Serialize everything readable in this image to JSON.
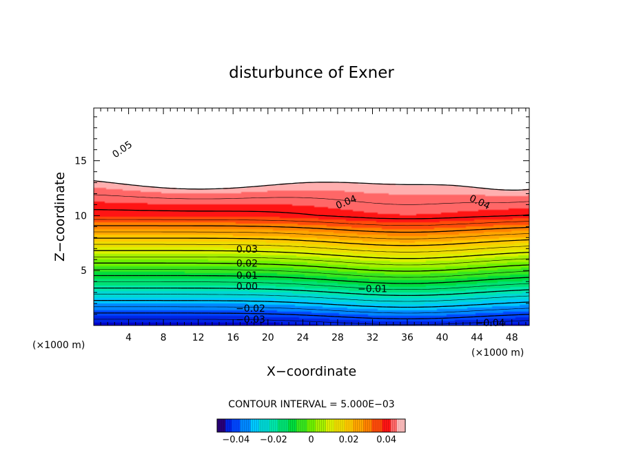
{
  "chart_data": {
    "type": "contour",
    "title": "disturbunce of Exner",
    "xlabel": "X−coordinate",
    "ylabel": "Z−coordinate",
    "x_unit": "(×1000 m)",
    "x_unit_left": "(×1000 m)",
    "xlim": [
      0,
      50
    ],
    "ylim": [
      0,
      19.8
    ],
    "x_ticks": [
      4,
      8,
      12,
      16,
      20,
      24,
      28,
      32,
      36,
      40,
      44,
      48
    ],
    "x_tick_labels": [
      "4",
      "8",
      "12",
      "16",
      "20",
      "24",
      "28",
      "32",
      "36",
      "40",
      "44",
      "48"
    ],
    "y_ticks": [
      5,
      10,
      15
    ],
    "y_tick_labels": [
      "5",
      "10",
      "15"
    ],
    "contour_interval_text": "CONTOUR INTERVAL = 5.000E−03",
    "contour_interval": 0.005,
    "color_range": [
      -0.05,
      0.05
    ],
    "contour_labels": [
      {
        "text": "0.05",
        "x": 3.3,
        "z": 16.0,
        "angle": -35
      },
      {
        "text": "0.04",
        "x": 29.0,
        "z": 11.2,
        "angle": -22
      },
      {
        "text": "0.04",
        "x": 44.3,
        "z": 11.2,
        "angle": 25
      },
      {
        "text": "0.03",
        "x": 17.6,
        "z": 6.9,
        "angle": 0
      },
      {
        "text": "0.02",
        "x": 17.6,
        "z": 5.6,
        "angle": 0
      },
      {
        "text": "0.01",
        "x": 17.6,
        "z": 4.5,
        "angle": 0
      },
      {
        "text": "0.00",
        "x": 17.6,
        "z": 3.5,
        "angle": 0
      },
      {
        "text": "−0.01",
        "x": 32.0,
        "z": 3.3,
        "angle": 0
      },
      {
        "text": "−0.02",
        "x": 18.0,
        "z": 1.5,
        "angle": 0
      },
      {
        "text": "−0.03",
        "x": 18.0,
        "z": 0.5,
        "angle": 0
      },
      {
        "text": "−0.04",
        "x": 45.5,
        "z": 0.2,
        "angle": 0
      }
    ],
    "colorbar": {
      "tick_values": [
        -0.04,
        -0.02,
        0,
        0.02,
        0.04
      ],
      "tick_labels": [
        "−0.04",
        "−0.02",
        "0",
        "0.02",
        "0.04"
      ]
    },
    "colors": [
      "#0000c8",
      "#0050ff",
      "#00c8ff",
      "#00e6a0",
      "#00dc3c",
      "#78f000",
      "#e6f000",
      "#ffc800",
      "#ff8200",
      "#ff3c1e",
      "#ff0000",
      "#ff9a9a",
      "#ffffff"
    ]
  }
}
